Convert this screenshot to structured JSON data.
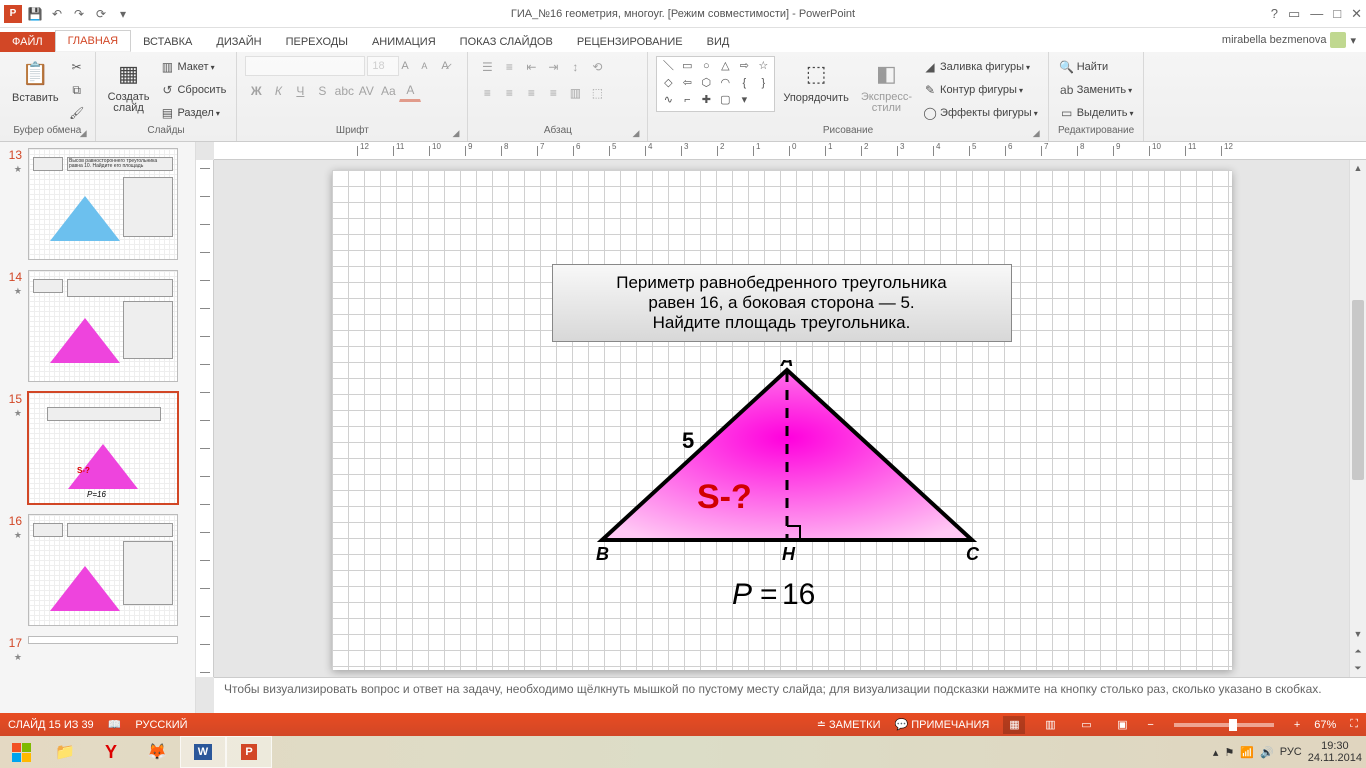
{
  "titlebar": {
    "title": "ГИА_№16 геометрия, многоуг. [Режим совместимости] - PowerPoint"
  },
  "tabs": {
    "file": "ФАЙЛ",
    "home": "ГЛАВНАЯ",
    "insert": "ВСТАВКА",
    "design": "ДИЗАЙН",
    "transitions": "ПЕРЕХОДЫ",
    "animation": "АНИМАЦИЯ",
    "slideshow": "ПОКАЗ СЛАЙДОВ",
    "review": "РЕЦЕНЗИРОВАНИЕ",
    "view": "ВИД",
    "user": "mirabella bezmenova"
  },
  "ribbon": {
    "clipboard": {
      "paste": "Вставить",
      "label": "Буфер обмена"
    },
    "slides": {
      "new": "Создать\nслайд",
      "layout": "Макет",
      "reset": "Сбросить",
      "section": "Раздел",
      "label": "Слайды"
    },
    "font": {
      "size": "18",
      "label": "Шрифт"
    },
    "paragraph": {
      "label": "Абзац"
    },
    "drawing": {
      "arrange": "Упорядочить",
      "styles": "Экспресс-\nстили",
      "fill": "Заливка фигуры",
      "outline": "Контур фигуры",
      "effects": "Эффекты фигуры",
      "label": "Рисование"
    },
    "editing": {
      "find": "Найти",
      "replace": "Заменить",
      "select": "Выделить",
      "label": "Редактирование"
    }
  },
  "thumbs": {
    "n13": "13",
    "n14": "14",
    "n15": "15",
    "n16": "16",
    "n17": "17"
  },
  "slide": {
    "problem_line1": "Периметр равнобедренного треугольника",
    "problem_line2": "равен 16, а боковая сторона — 5.",
    "problem_line3": "Найдите площадь треугольника.",
    "vA": "A",
    "vB": "B",
    "vC": "C",
    "vH": "H",
    "side": "5",
    "area": "S-?",
    "perimeter_label": "P",
    "perimeter_eq": "=",
    "perimeter_val": "16",
    "triangle_fill": "#ff33dd",
    "triangle_fill2": "#ffb0f0"
  },
  "notes": "Чтобы визуализировать вопрос и ответ на задачу, необходимо щёлкнуть мышкой по пустому месту слайда; для визуализации подсказки нажмите на кнопку столько раз, сколько указано в скобках.",
  "status": {
    "slide": "СЛАЙД 15 ИЗ 39",
    "lang": "РУССКИЙ",
    "notes": "ЗАМЕТКИ",
    "comments": "ПРИМЕЧАНИЯ",
    "zoom": "67%"
  },
  "taskbar": {
    "time": "19:30",
    "date": "24.11.2014",
    "lang": "РУС"
  }
}
